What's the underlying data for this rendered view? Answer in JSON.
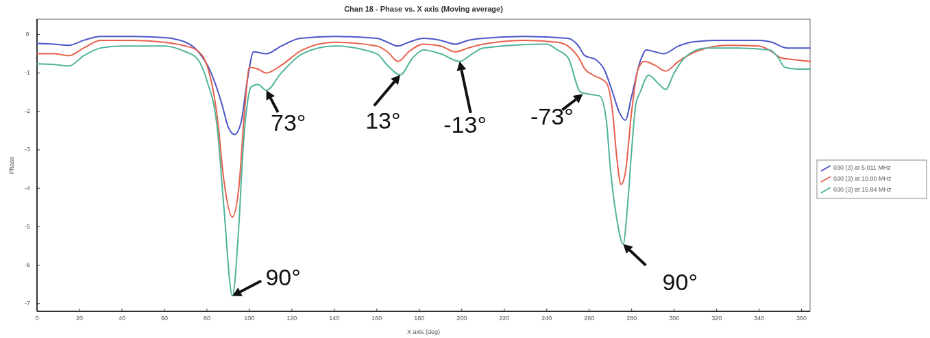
{
  "chart_data": {
    "type": "line",
    "title": "Chan 18 - Phase vs. X axis (Moving average)",
    "xlabel": "X axis (deg)",
    "ylabel": "Phase",
    "xlim": [
      0,
      364
    ],
    "ylim": [
      -7.2,
      0.4
    ],
    "xticks": [
      0,
      20,
      40,
      60,
      80,
      100,
      120,
      140,
      160,
      180,
      200,
      220,
      240,
      260,
      280,
      300,
      320,
      340,
      360
    ],
    "yticks": [
      0,
      -1,
      -2,
      -3,
      -4,
      -5,
      -6,
      -7
    ],
    "grid": false,
    "legend": "right",
    "marker": "none",
    "line_style": "solid",
    "series": [
      {
        "name": "030 (3) at 5.011 MHz",
        "color": "#4a56c8",
        "x": [
          0,
          8,
          15,
          22,
          30,
          45,
          60,
          70,
          76,
          82,
          87,
          90,
          93,
          96,
          99,
          102,
          108,
          115,
          124,
          140,
          160,
          165,
          170,
          175,
          182,
          190,
          197,
          203,
          210,
          230,
          250,
          255,
          258,
          263,
          267,
          271,
          274,
          277,
          280,
          284,
          287,
          291,
          295,
          302,
          308,
          320,
          340,
          346,
          353,
          364
        ],
        "values": [
          -0.23,
          -0.25,
          -0.28,
          -0.15,
          -0.05,
          -0.05,
          -0.08,
          -0.2,
          -0.45,
          -1.0,
          -1.8,
          -2.4,
          -2.6,
          -2.3,
          -1.2,
          -0.45,
          -0.5,
          -0.3,
          -0.1,
          -0.05,
          -0.1,
          -0.2,
          -0.3,
          -0.2,
          -0.1,
          -0.15,
          -0.25,
          -0.15,
          -0.1,
          -0.05,
          -0.1,
          -0.3,
          -0.55,
          -0.65,
          -0.9,
          -1.5,
          -2.0,
          -2.23,
          -1.6,
          -0.7,
          -0.4,
          -0.45,
          -0.5,
          -0.3,
          -0.2,
          -0.15,
          -0.15,
          -0.2,
          -0.35,
          -0.35
        ]
      },
      {
        "name": "030 (3) at 10.00 MHz",
        "color": "#e8604c",
        "x": [
          0,
          8,
          15,
          22,
          30,
          45,
          60,
          70,
          75,
          80,
          85,
          88,
          92,
          95,
          98,
          100,
          104,
          108,
          115,
          125,
          140,
          160,
          165,
          170,
          175,
          182,
          190,
          197,
          203,
          210,
          230,
          245,
          250,
          255,
          258,
          262,
          268,
          271,
          273,
          275,
          277,
          280,
          283,
          286,
          291,
          296,
          302,
          310,
          325,
          340,
          346,
          350,
          356,
          364
        ],
        "values": [
          -0.5,
          -0.5,
          -0.55,
          -0.35,
          -0.15,
          -0.15,
          -0.2,
          -0.3,
          -0.4,
          -0.8,
          -2.2,
          -3.8,
          -4.75,
          -4.0,
          -1.8,
          -0.85,
          -0.9,
          -1.0,
          -0.8,
          -0.4,
          -0.2,
          -0.3,
          -0.45,
          -0.7,
          -0.45,
          -0.25,
          -0.3,
          -0.45,
          -0.35,
          -0.25,
          -0.15,
          -0.2,
          -0.3,
          -0.6,
          -0.9,
          -1.06,
          -1.25,
          -2.0,
          -3.2,
          -3.9,
          -3.6,
          -2.0,
          -0.9,
          -0.7,
          -0.8,
          -0.95,
          -0.7,
          -0.45,
          -0.28,
          -0.3,
          -0.45,
          -0.6,
          -0.65,
          -0.7
        ]
      },
      {
        "name": "030 (3) at 15.84 MHz",
        "color": "#4fb39a",
        "x": [
          0,
          8,
          15,
          22,
          30,
          40,
          60,
          70,
          75,
          80,
          85,
          88,
          92,
          95,
          97,
          99,
          101,
          104,
          108,
          115,
          125,
          140,
          160,
          165,
          171,
          177,
          182,
          190,
          199,
          205,
          210,
          240,
          245,
          250,
          256,
          260,
          265,
          268,
          270,
          273,
          276,
          278,
          280,
          282,
          284,
          288,
          293,
          296,
          300,
          305,
          315,
          330,
          345,
          349,
          352,
          358,
          364
        ],
        "values": [
          -0.76,
          -0.78,
          -0.82,
          -0.55,
          -0.35,
          -0.3,
          -0.3,
          -0.45,
          -0.6,
          -1.2,
          -2.5,
          -4.5,
          -6.8,
          -5.0,
          -3.0,
          -1.8,
          -1.35,
          -1.3,
          -1.45,
          -1.0,
          -0.5,
          -0.3,
          -0.5,
          -0.8,
          -1.05,
          -0.6,
          -0.4,
          -0.5,
          -0.7,
          -0.5,
          -0.35,
          -0.25,
          -0.4,
          -0.6,
          -1.5,
          -1.55,
          -1.6,
          -2.2,
          -3.5,
          -4.8,
          -5.45,
          -4.5,
          -3.0,
          -1.8,
          -1.5,
          -1.06,
          -1.3,
          -1.43,
          -1.0,
          -0.6,
          -0.35,
          -0.35,
          -0.4,
          -0.6,
          -0.85,
          -0.9,
          -0.9
        ]
      }
    ],
    "annotations": [
      {
        "text": "73°",
        "x": 108,
        "y": -1.45
      },
      {
        "text": "13°",
        "x": 171,
        "y": -1.05
      },
      {
        "text": "-13°",
        "x": 199,
        "y": -0.7
      },
      {
        "text": "-73°",
        "x": 257,
        "y": -1.55
      },
      {
        "text": "90°",
        "x": 92,
        "y": -6.8
      },
      {
        "text": "90°",
        "x": 276,
        "y": -5.45
      }
    ]
  }
}
